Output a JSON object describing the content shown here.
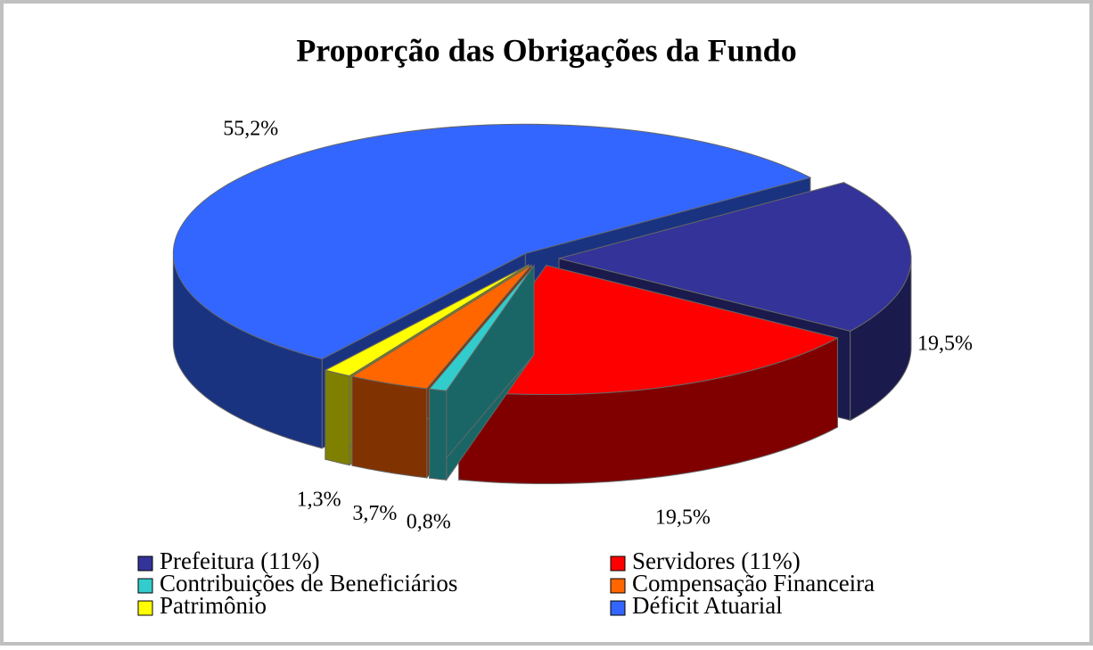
{
  "chart_data": {
    "type": "pie3d",
    "title": "Proporção das Obrigações da Fundo",
    "categories": [
      "Prefeitura (11%)",
      "Servidores (11%)",
      "Contribuições de Beneficiários",
      "Compensação Financeira",
      "Patrimônio",
      "Déficit Atuarial"
    ],
    "values": [
      19.5,
      19.5,
      0.8,
      3.7,
      1.3,
      55.2
    ],
    "value_labels": [
      "19,5%",
      "19,5%",
      "0,8%",
      "3,7%",
      "1,3%",
      "55,2%"
    ],
    "colors": [
      "#333399",
      "#ff0000",
      "#33cccc",
      "#ff6600",
      "#ffff00",
      "#3366ff"
    ],
    "legend": "bottom"
  }
}
